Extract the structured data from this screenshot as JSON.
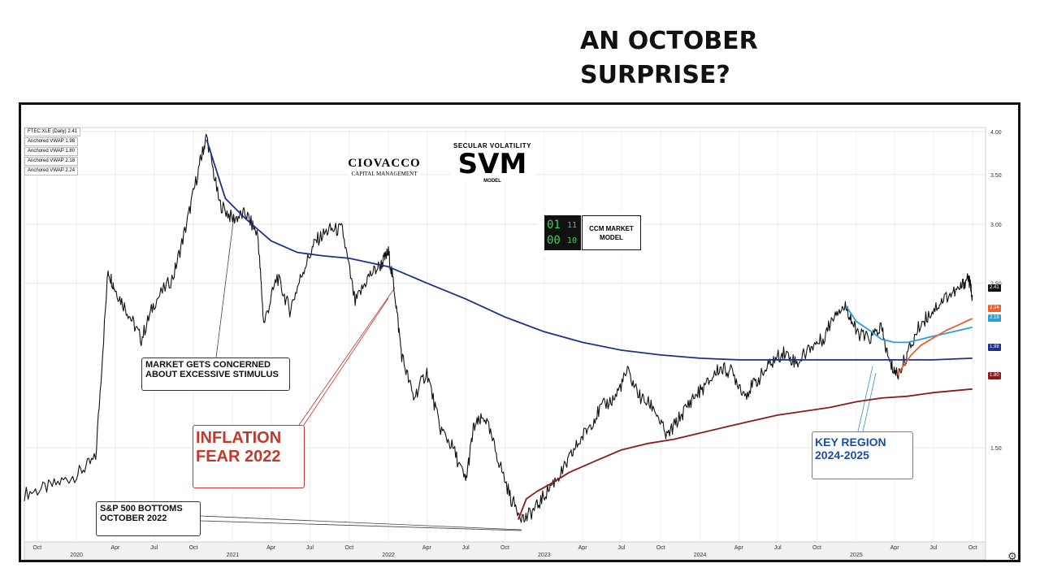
{
  "headline": {
    "line1": "AN OCTOBER",
    "line2": "SURPRISE?"
  },
  "legend": [
    {
      "text": "FTEC:XLE (Daily) 2.41",
      "color": "#111111"
    },
    {
      "text": "Anchored VWAP 1.98",
      "color": "#1f2f8a"
    },
    {
      "text": "Anchored VWAP 1.80",
      "color": "#8b1a1a"
    },
    {
      "text": "Anchored VWAP 2.18",
      "color": "#2a9fd8"
    },
    {
      "text": "Anchored VWAP 2.24",
      "color": "#e8622a"
    }
  ],
  "logos": {
    "ciovacco_name": "CIOVACCO",
    "ciovacco_sub": "CAPITAL MANAGEMENT",
    "svm_top": "SECULAR VOLATILITY",
    "svm_main": "SVM",
    "svm_bottom": "MODEL",
    "ccm_label_line1": "CCM MARKET",
    "ccm_label_line2": "MODEL",
    "ccm_digits": [
      "01",
      "11",
      "00",
      "10"
    ]
  },
  "annotations": {
    "stimulus_line1": "MARKET GETS CONCERNED",
    "stimulus_line2": "ABOUT EXCESSIVE STIMULUS",
    "inflation_line1": "INFLATION",
    "inflation_line2": "FEAR 2022",
    "sp500_line1": "S&P 500 BOTTOMS",
    "sp500_line2": "OCTOBER 2022",
    "key_line1": "KEY REGION",
    "key_line2": "2024-2025"
  },
  "right_labels": {
    "price": "2.41",
    "orange": "2.24",
    "cyan": "2.18",
    "navy": "1.98",
    "red": "1.80"
  },
  "chart_data": {
    "type": "line",
    "log_scale": true,
    "ylim": [
      1.12,
      4.05
    ],
    "xlim": [
      "2019-09-01",
      "2025-10-31"
    ],
    "y_ticks": [
      "4.00",
      "3.50",
      "3.00",
      "2.50",
      "1.50"
    ],
    "x_ticks": [
      "Oct",
      "2020",
      "Apr",
      "Jul",
      "Oct",
      "2021",
      "Apr",
      "Jul",
      "Oct",
      "2022",
      "Apr",
      "Jul",
      "Oct",
      "2023",
      "Apr",
      "Jul",
      "Oct",
      "2024",
      "Apr",
      "Jul",
      "Oct",
      "2025",
      "Apr",
      "Jul",
      "Oct"
    ],
    "grid": true,
    "series": [
      {
        "name": "FTEC:XLE (Daily)",
        "color": "#111111",
        "x": [
          "2019-09-01",
          "2019-11-01",
          "2020-01-01",
          "2020-02-15",
          "2020-03-15",
          "2020-04-01",
          "2020-05-01",
          "2020-06-01",
          "2020-07-01",
          "2020-08-15",
          "2020-09-15",
          "2020-10-15",
          "2020-11-01",
          "2020-12-01",
          "2021-01-01",
          "2021-02-01",
          "2021-03-01",
          "2021-03-15",
          "2021-04-15",
          "2021-05-15",
          "2021-06-15",
          "2021-07-15",
          "2021-08-15",
          "2021-09-15",
          "2021-10-15",
          "2021-11-15",
          "2021-12-15",
          "2022-01-01",
          "2022-01-15",
          "2022-02-01",
          "2022-03-01",
          "2022-04-01",
          "2022-05-01",
          "2022-06-01",
          "2022-07-01",
          "2022-07-20",
          "2022-08-15",
          "2022-09-15",
          "2022-10-15",
          "2022-11-15",
          "2022-12-15",
          "2023-01-15",
          "2023-02-15",
          "2023-03-15",
          "2023-04-15",
          "2023-05-15",
          "2023-06-15",
          "2023-07-15",
          "2023-08-15",
          "2023-09-15",
          "2023-10-15",
          "2023-11-15",
          "2023-12-15",
          "2024-01-15",
          "2024-02-15",
          "2024-03-15",
          "2024-04-15",
          "2024-05-15",
          "2024-06-15",
          "2024-07-15",
          "2024-08-15",
          "2024-09-15",
          "2024-10-15",
          "2024-11-15",
          "2024-12-10",
          "2024-12-31",
          "2025-01-31",
          "2025-02-28",
          "2025-03-20",
          "2025-04-08",
          "2025-04-30",
          "2025-05-31",
          "2025-06-30",
          "2025-07-31",
          "2025-08-31",
          "2025-09-20",
          "2025-09-30"
        ],
        "values": [
          1.3,
          1.33,
          1.38,
          1.45,
          2.6,
          2.45,
          2.28,
          2.1,
          2.35,
          2.55,
          3.0,
          3.6,
          3.95,
          3.2,
          3.05,
          3.1,
          2.9,
          2.2,
          2.55,
          2.3,
          2.6,
          2.85,
          2.95,
          2.95,
          2.35,
          2.55,
          2.65,
          2.75,
          2.45,
          2.0,
          1.75,
          1.9,
          1.6,
          1.5,
          1.35,
          1.6,
          1.65,
          1.45,
          1.28,
          1.2,
          1.25,
          1.33,
          1.4,
          1.5,
          1.6,
          1.7,
          1.75,
          1.9,
          1.75,
          1.7,
          1.55,
          1.65,
          1.75,
          1.82,
          1.92,
          1.9,
          1.77,
          1.85,
          1.95,
          2.02,
          1.95,
          2.05,
          2.1,
          2.3,
          2.32,
          2.15,
          2.1,
          2.18,
          1.95,
          1.88,
          2.0,
          2.2,
          2.3,
          2.4,
          2.45,
          2.55,
          2.41
        ]
      },
      {
        "name": "Anchored VWAP",
        "color": "#1f2f8a",
        "x": [
          "2020-11-01",
          "2020-12-15",
          "2021-02-01",
          "2021-04-01",
          "2021-06-01",
          "2021-08-01",
          "2021-10-01",
          "2022-01-01",
          "2022-04-01",
          "2022-07-01",
          "2022-10-01",
          "2023-01-01",
          "2023-04-01",
          "2023-07-01",
          "2023-10-01",
          "2024-01-01",
          "2024-04-01",
          "2024-07-01",
          "2024-10-01",
          "2025-01-01",
          "2025-04-01",
          "2025-07-01",
          "2025-09-30"
        ],
        "values": [
          3.9,
          3.25,
          3.05,
          2.85,
          2.75,
          2.72,
          2.7,
          2.63,
          2.5,
          2.38,
          2.25,
          2.15,
          2.08,
          2.03,
          2.0,
          1.98,
          1.97,
          1.97,
          1.97,
          1.97,
          1.97,
          1.97,
          1.98
        ]
      },
      {
        "name": "Anchored VWAP",
        "color": "#8b1a1a",
        "x": [
          "2022-11-01",
          "2022-11-20",
          "2022-12-15",
          "2023-01-15",
          "2023-03-01",
          "2023-05-01",
          "2023-07-01",
          "2023-09-01",
          "2023-11-01",
          "2024-01-01",
          "2024-03-01",
          "2024-05-01",
          "2024-07-01",
          "2024-09-01",
          "2024-11-01",
          "2025-01-01",
          "2025-03-01",
          "2025-05-01",
          "2025-07-01",
          "2025-09-30"
        ],
        "values": [
          1.2,
          1.28,
          1.31,
          1.34,
          1.39,
          1.44,
          1.49,
          1.52,
          1.54,
          1.57,
          1.6,
          1.63,
          1.66,
          1.68,
          1.7,
          1.73,
          1.75,
          1.76,
          1.78,
          1.8
        ]
      },
      {
        "name": "Anchored VWAP",
        "color": "#2a9fd8",
        "x": [
          "2024-12-10",
          "2025-01-01",
          "2025-02-01",
          "2025-03-01",
          "2025-04-01",
          "2025-05-01",
          "2025-06-01",
          "2025-07-01",
          "2025-08-01",
          "2025-09-30"
        ],
        "values": [
          2.32,
          2.22,
          2.16,
          2.1,
          2.08,
          2.08,
          2.1,
          2.12,
          2.14,
          2.18
        ]
      },
      {
        "name": "Anchored VWAP",
        "color": "#e8622a",
        "x": [
          "2025-04-08",
          "2025-04-20",
          "2025-05-10",
          "2025-06-01",
          "2025-07-01",
          "2025-08-01",
          "2025-09-01",
          "2025-09-30"
        ],
        "values": [
          1.88,
          1.93,
          2.0,
          2.06,
          2.11,
          2.16,
          2.2,
          2.24
        ]
      }
    ]
  }
}
